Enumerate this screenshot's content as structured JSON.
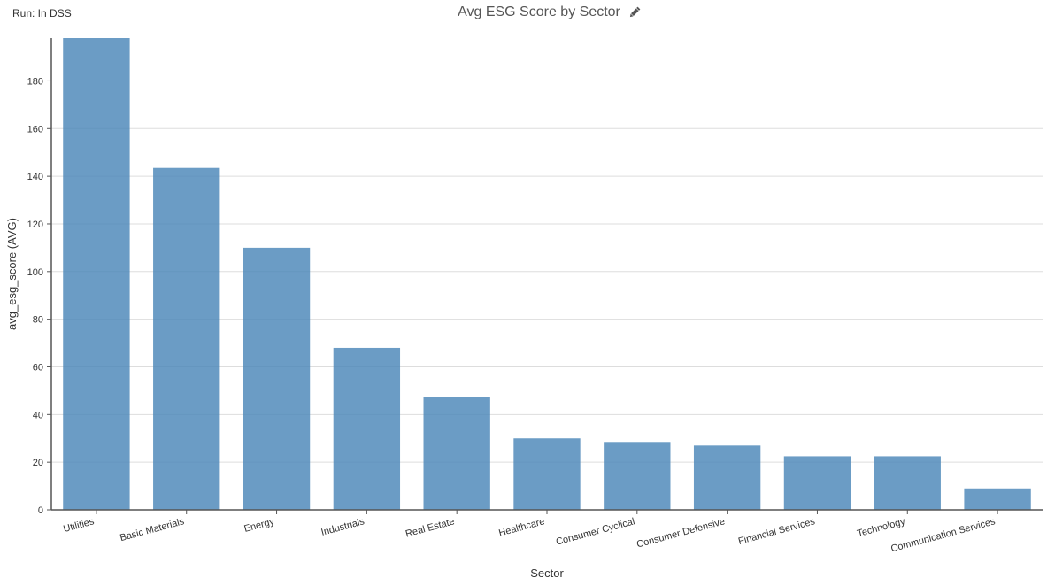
{
  "run_label": "Run: In DSS",
  "edit_icon": "pencil-icon",
  "chart_data": {
    "type": "bar",
    "title": "Avg ESG Score by Sector",
    "xlabel": "Sector",
    "ylabel": "avg_esg_score (AVG)",
    "categories": [
      "Utilities",
      "Basic Materials",
      "Energy",
      "Industrials",
      "Real Estate",
      "Healthcare",
      "Consumer Cyclical",
      "Consumer Defensive",
      "Financial Services",
      "Technology",
      "Communication Services"
    ],
    "values": [
      198,
      143.5,
      110,
      68,
      47.5,
      30,
      28.5,
      27,
      22.5,
      22.5,
      9
    ],
    "ylim": [
      0,
      198
    ],
    "yticks": [
      0,
      20,
      40,
      60,
      80,
      100,
      120,
      140,
      160,
      180
    ],
    "grid": true,
    "bar_color": "#4a86b8",
    "grid_color": "#dddddd",
    "axis_color": "#555555"
  }
}
